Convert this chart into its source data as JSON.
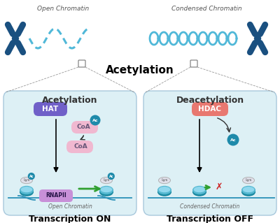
{
  "bg_color": "#ffffff",
  "left_box_color": "#ddf0f5",
  "right_box_color": "#ddf0f5",
  "hat_color": "#7060c8",
  "hdac_color": "#e87870",
  "coa_color": "#f0b8d0",
  "ac_color": "#1e8aaa",
  "lys_color": "#e0e0ea",
  "rnapii_color": "#c890d8",
  "chrom_dark": "#1a5080",
  "chrom_light": "#50b8d8",
  "chrom_medium": "#2a90b8",
  "arrow_green": "#30a030",
  "arrow_red": "#cc2020",
  "title": "Acetylation",
  "left_panel_title": "Acetylation",
  "right_panel_title": "Deacetylation",
  "left_footer": "Transcription ON",
  "right_footer": "Transcription OFF",
  "open_chromatin_label": "Open Chromatin",
  "condensed_chromatin_label": "Condensed Chromatin",
  "open_chromatin_sub": "Open Chromatin",
  "condensed_chromatin_sub": "Condensed Chromatin"
}
